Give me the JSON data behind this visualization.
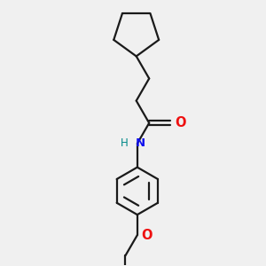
{
  "bg_color": "#f0f0f0",
  "bond_color": "#1a1a1a",
  "bond_width": 1.6,
  "N_color": "#1010ee",
  "O_color": "#ee1010",
  "H_color": "#008888",
  "font_size_NH": 9.5,
  "font_size_H": 8.5,
  "font_size_O": 10.5,
  "figsize": [
    3.0,
    3.0
  ],
  "dpi": 100,
  "xlim": [
    -1.5,
    4.0
  ],
  "ylim": [
    -0.5,
    7.5
  ]
}
